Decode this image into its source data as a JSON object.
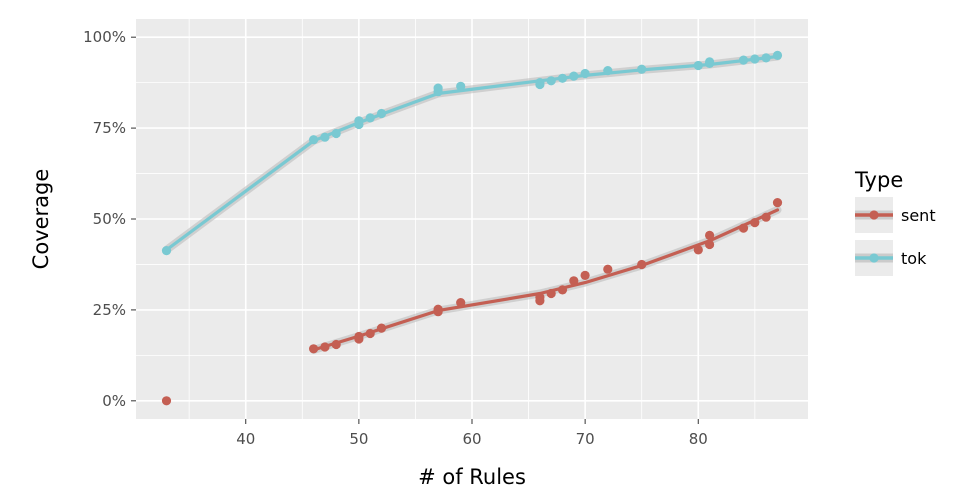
{
  "chart_data": {
    "type": "scatter",
    "xlabel": "# of Rules",
    "ylabel": "Coverage",
    "xlim": [
      30.3,
      89.7
    ],
    "ylim": [
      -0.05,
      1.05
    ],
    "x_ticks": [
      40,
      50,
      60,
      70,
      80
    ],
    "x_tick_labels": [
      "40",
      "50",
      "60",
      "70",
      "80"
    ],
    "y_ticks": [
      0,
      0.25,
      0.5,
      0.75,
      1.0
    ],
    "y_tick_labels": [
      "0%",
      "25%",
      "50%",
      "75%",
      "100%"
    ],
    "grid": true,
    "legend": {
      "title": "Type",
      "position": "right"
    },
    "series": [
      {
        "name": "sent",
        "color": "#c45f53",
        "points": [
          [
            33,
            0.0
          ],
          [
            46,
            0.143
          ],
          [
            47,
            0.148
          ],
          [
            48,
            0.155
          ],
          [
            50,
            0.17
          ],
          [
            50,
            0.177
          ],
          [
            51,
            0.185
          ],
          [
            52,
            0.2
          ],
          [
            57,
            0.245
          ],
          [
            57,
            0.252
          ],
          [
            59,
            0.27
          ],
          [
            66,
            0.275
          ],
          [
            66,
            0.285
          ],
          [
            67,
            0.295
          ],
          [
            68,
            0.305
          ],
          [
            69,
            0.33
          ],
          [
            70,
            0.345
          ],
          [
            72,
            0.362
          ],
          [
            75,
            0.375
          ],
          [
            80,
            0.415
          ],
          [
            81,
            0.43
          ],
          [
            81,
            0.455
          ],
          [
            84,
            0.475
          ],
          [
            85,
            0.49
          ],
          [
            86,
            0.505
          ],
          [
            87,
            0.545
          ]
        ],
        "fit": [
          [
            46,
            0.14
          ],
          [
            50,
            0.178
          ],
          [
            57,
            0.248
          ],
          [
            66,
            0.295
          ],
          [
            70,
            0.325
          ],
          [
            75,
            0.372
          ],
          [
            81,
            0.44
          ],
          [
            87,
            0.525
          ]
        ]
      },
      {
        "name": "tok",
        "color": "#79c9d2",
        "points": [
          [
            33,
            0.413
          ],
          [
            46,
            0.718
          ],
          [
            47,
            0.725
          ],
          [
            48,
            0.735
          ],
          [
            50,
            0.76
          ],
          [
            50,
            0.77
          ],
          [
            51,
            0.778
          ],
          [
            52,
            0.79
          ],
          [
            57,
            0.85
          ],
          [
            57,
            0.86
          ],
          [
            59,
            0.865
          ],
          [
            66,
            0.87
          ],
          [
            66,
            0.875
          ],
          [
            67,
            0.88
          ],
          [
            68,
            0.887
          ],
          [
            69,
            0.893
          ],
          [
            70,
            0.9
          ],
          [
            72,
            0.908
          ],
          [
            75,
            0.912
          ],
          [
            80,
            0.922
          ],
          [
            81,
            0.928
          ],
          [
            81,
            0.932
          ],
          [
            84,
            0.937
          ],
          [
            85,
            0.94
          ],
          [
            86,
            0.943
          ],
          [
            87,
            0.95
          ]
        ],
        "fit": [
          [
            33,
            0.415
          ],
          [
            46,
            0.715
          ],
          [
            50,
            0.765
          ],
          [
            57,
            0.845
          ],
          [
            66,
            0.88
          ],
          [
            70,
            0.895
          ],
          [
            75,
            0.91
          ],
          [
            81,
            0.925
          ],
          [
            87,
            0.947
          ]
        ]
      }
    ]
  }
}
